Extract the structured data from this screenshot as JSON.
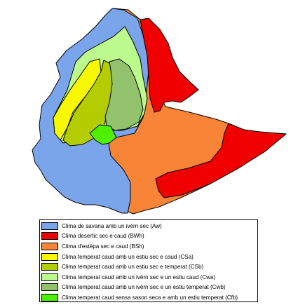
{
  "map": {
    "colors": {
      "Aw": "#7aa5ea",
      "BWh": "#f00000",
      "BSh": "#f88438",
      "CSa": "#f8f800",
      "CSb": "#b4cd00",
      "Cwa": "#bdfa8d",
      "Cwb": "#92c26b",
      "Cfb": "#4ef000"
    }
  },
  "legend": {
    "items": [
      {
        "code": "Aw",
        "label": "Clima de savana amb un ivèrn sec (Aw)",
        "color": "#7aa5ea"
      },
      {
        "code": "BWh",
        "label": "Clima desertic sec e caud (BWh)",
        "color": "#f00000"
      },
      {
        "code": "BSh",
        "label": "Clima d'estèpa sec e caud (BSh)",
        "color": "#f88438"
      },
      {
        "code": "CSa",
        "label": "Clima temperat caud amb un estiu sec e caud (CSa)",
        "color": "#f8f800"
      },
      {
        "code": "CSb",
        "label": "Clima temperat caud amb un estiu sec e temperat (CSb)",
        "color": "#b4cd00"
      },
      {
        "code": "Cwa",
        "label": "Clima temperat caud amb un ivèrn sec e un estiu caud (Cwa)",
        "color": "#bdfa8d"
      },
      {
        "code": "Cwb",
        "label": "Clima temperat caud amb un ivèrn sec e un estiu temperat (Cwb)",
        "color": "#92c26b"
      },
      {
        "code": "Cfb",
        "label": "Clima temperat caud sensa sason seca e amb un estiu temperat (Cfb)",
        "color": "#4ef000"
      }
    ]
  }
}
